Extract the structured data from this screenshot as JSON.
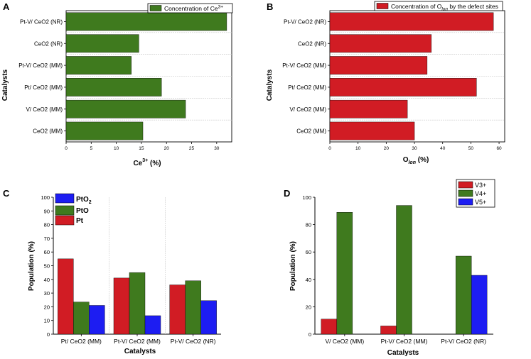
{
  "colors": {
    "green": "#3f7a1e",
    "red": "#d11c24",
    "blue": "#1d1df2",
    "axis": "#000000",
    "divider": "#c8c8c8"
  },
  "chart_data": [
    {
      "panel": "A",
      "type": "bar",
      "orientation": "horizontal",
      "categories": [
        "Pt-V/ CeO2 (NR)",
        "CeO2 (NR)",
        "Pt-V/ CeO2 (MM)",
        "Pt/ CeO2 (MM)",
        "V/ CeO2 (MM)",
        "CeO2 (MM)"
      ],
      "values": [
        32,
        14.5,
        13,
        19,
        23.8,
        15.3
      ],
      "series_name_main": "Concentration of Ce",
      "series_name_sup": "3+",
      "xlabel_main": "Ce",
      "xlabel_sup": "3+",
      "xlabel_tail": " (%)",
      "ylabel": "Catalysts",
      "xlim": [
        0,
        33
      ],
      "xticks": [
        "0",
        "5",
        "10",
        "15",
        "20",
        "25",
        "30"
      ],
      "legend": "top-right",
      "color": "#3f7a1e"
    },
    {
      "panel": "B",
      "type": "bar",
      "orientation": "horizontal",
      "categories": [
        "Pt-V/ CeO2 (NR)",
        "CeO2 (NR)",
        "Pt-V/ CeO2 (MM)",
        "Pt/ CeO2 (MM)",
        "V/ CeO2 (MM)",
        "CeO2 (MM)"
      ],
      "values": [
        58,
        36,
        34.5,
        52,
        27.5,
        30
      ],
      "series_name_main": "Concentration of O",
      "series_name_sub": "lon",
      "series_name_tail": " by the defect sites",
      "xlabel_main": "O",
      "xlabel_sub": "lon",
      "xlabel_tail": " (%)",
      "ylabel": "Catalysts",
      "xlim": [
        0,
        62
      ],
      "xticks": [
        "0",
        "10",
        "20",
        "30",
        "40",
        "50",
        "60"
      ],
      "legend": "top-right",
      "color": "#d11c24"
    },
    {
      "panel": "C",
      "type": "bar",
      "categories": [
        "Pt/ CeO2 (MM)",
        "Pt-V/ CeO2 (MM)",
        "Pt-V/ CeO2 (NR)"
      ],
      "series": [
        {
          "name": "Pt",
          "values": [
            55,
            41,
            36
          ],
          "color": "#d11c24"
        },
        {
          "name": "PtO",
          "values": [
            23.5,
            45,
            39
          ],
          "color": "#3f7a1e"
        },
        {
          "name": "PtO",
          "name_sub": "2",
          "values": [
            21,
            13.5,
            24.5
          ],
          "color": "#1d1df2"
        }
      ],
      "xlabel": "Catalysts",
      "ylabel": "Population (%)",
      "ylim": [
        0,
        100
      ],
      "yticks": [
        "0",
        "10",
        "20",
        "30",
        "40",
        "50",
        "60",
        "70",
        "80",
        "90",
        "100"
      ],
      "legend": "top-left"
    },
    {
      "panel": "D",
      "type": "bar",
      "categories": [
        "V/ CeO2 (MM)",
        "Pt-V/ CeO2 (MM)",
        "Pt-V/ CeO2 (NR)"
      ],
      "series": [
        {
          "name": "V3+",
          "values": [
            11,
            6,
            0
          ],
          "color": "#d11c24"
        },
        {
          "name": "V4+",
          "values": [
            89,
            94,
            57
          ],
          "color": "#3f7a1e"
        },
        {
          "name": "V5+",
          "values": [
            0,
            0,
            43
          ],
          "color": "#1d1df2"
        }
      ],
      "xlabel": "Catalysts",
      "ylabel": "Population (%)",
      "ylim": [
        0,
        100
      ],
      "yticks": [
        "0",
        "20",
        "40",
        "60",
        "80",
        "100"
      ],
      "legend": "top-right"
    }
  ]
}
